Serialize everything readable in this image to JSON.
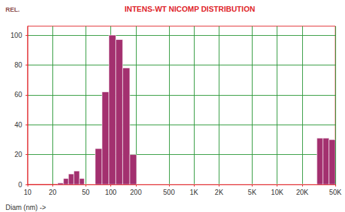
{
  "chart_data": {
    "type": "histogram",
    "title": "INTENS-WT NICOMP DISTRIBUTION",
    "x_label": "Diam (nm) ->",
    "y_label": "REL.",
    "bins": [
      23,
      27,
      31,
      36,
      42,
      48,
      65,
      78.5,
      95,
      115,
      139,
      169,
      204,
      30000,
      35500,
      42000,
      50000
    ],
    "values": [
      1,
      4,
      7,
      9,
      4,
      0,
      24,
      62,
      100,
      97,
      78,
      20,
      0,
      31,
      31,
      30
    ],
    "color": "#a3306f",
    "log": "x",
    "xlim": [
      10,
      50000
    ],
    "xticks": [
      10,
      20,
      50,
      100,
      200,
      500,
      {
        "value": 1000,
        "label": "1K"
      },
      {
        "value": 2000,
        "label": "2K"
      },
      {
        "value": 5000,
        "label": "5K"
      },
      {
        "value": 10000,
        "label": "10K"
      },
      {
        "value": 20000,
        "label": "20K"
      },
      {
        "value": 50000,
        "label": "50K"
      }
    ],
    "ylim": [
      0,
      106
    ],
    "yticks": [
      0,
      20,
      40,
      60,
      80,
      100
    ],
    "grid": true
  }
}
